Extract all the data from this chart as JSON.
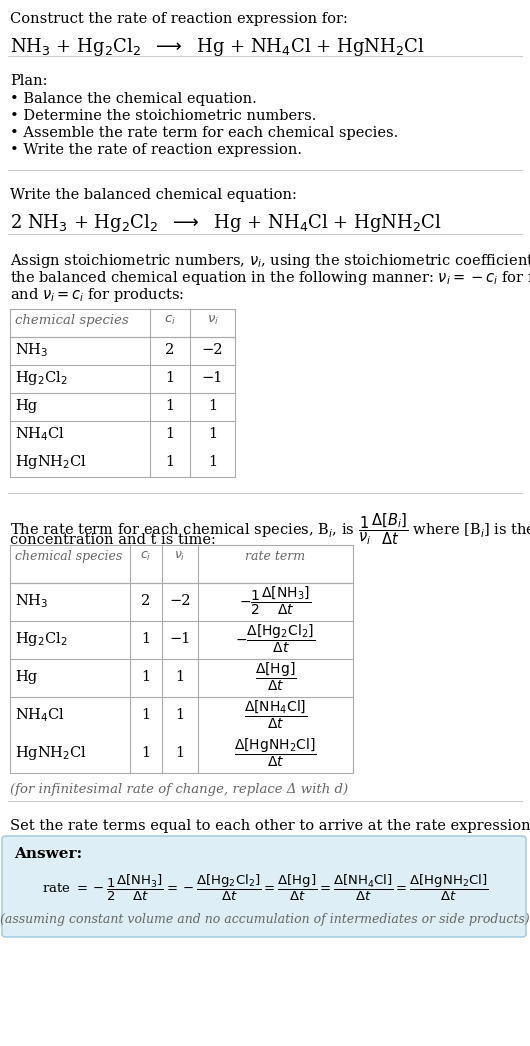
{
  "bg_color": "#ffffff",
  "text_color": "#000000",
  "gray_text": "#666666",
  "light_blue_bg": "#ddeef6",
  "table_border": "#aaaaaa",
  "separator_color": "#cccccc",
  "section1_title": "Construct the rate of reaction expression for:",
  "section1_reaction": "NH_3 + Hg_2Cl_2 -> Hg + NH_4Cl + HgNH_2Cl",
  "plan_title": "Plan:",
  "plan_items": [
    "• Balance the chemical equation.",
    "• Determine the stoichiometric numbers.",
    "• Assemble the rate term for each chemical species.",
    "• Write the rate of reaction expression."
  ],
  "balanced_title": "Write the balanced chemical equation:",
  "balanced_eq": "2 NH_3 + Hg_2Cl_2 -> Hg + NH_4Cl + HgNH_2Cl",
  "stoich_intro": [
    "Assign stoichiometric numbers, \\u03bd_i, using the stoichiometric coefficients, c_i, from",
    "the balanced chemical equation in the following manner: \\u03bd_i = \\u2212c_i for reactants",
    "and \\u03bd_i = c_i for products:"
  ],
  "table1_species": [
    "NH_3",
    "Hg_2Cl_2",
    "Hg",
    "NH_4Cl",
    "HgNH_2Cl"
  ],
  "table1_ci": [
    "2",
    "1",
    "1",
    "1",
    "1"
  ],
  "table1_vi": [
    "−2",
    "−1",
    "1",
    "1",
    "1"
  ],
  "rate_intro1": "The rate term for each chemical species, B_i, is",
  "rate_intro2": "concentration and t is time:",
  "table2_species": [
    "NH_3",
    "Hg_2Cl_2",
    "Hg",
    "NH_4Cl",
    "HgNH_2Cl"
  ],
  "table2_ci": [
    "2",
    "1",
    "1",
    "1",
    "1"
  ],
  "table2_vi": [
    "−2",
    "−1",
    "1",
    "1",
    "1"
  ],
  "infinitesimal_note": "(for infinitesimal rate of change, replace Δ with d)",
  "set_equal_text": "Set the rate terms equal to each other to arrive at the rate expression:",
  "answer_label": "Answer:",
  "assumption_note": "(assuming constant volume and no accumulation of intermediates or side products)"
}
